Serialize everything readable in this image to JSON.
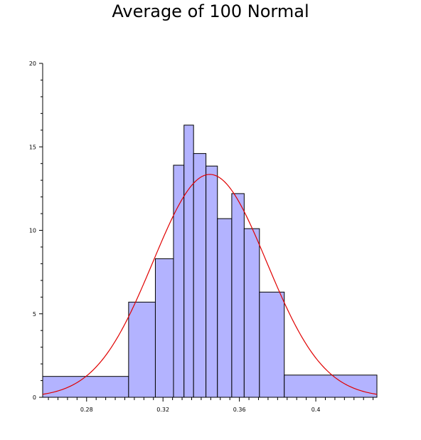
{
  "chart_data": {
    "type": "bar",
    "title": "Average of 100 Normal",
    "xlabel": "",
    "ylabel": "",
    "xlim": [
      0.257,
      0.432
    ],
    "ylim": [
      0,
      20
    ],
    "x_ticks": [
      0.28,
      0.32,
      0.36,
      0.4
    ],
    "x_tick_labels": [
      "0.28",
      "0.32",
      "0.36",
      "0.4"
    ],
    "y_ticks": [
      0,
      5,
      10,
      15,
      20
    ],
    "y_tick_labels": [
      "0",
      "5",
      "10",
      "15",
      "20"
    ],
    "grid": false,
    "colors": {
      "bar_fill": "#b3b3ff",
      "bar_stroke": "#000000",
      "curve": "#e00000"
    },
    "bins": [
      {
        "x0": 0.257,
        "x1": 0.302,
        "height": 1.25
      },
      {
        "x0": 0.302,
        "x1": 0.316,
        "height": 5.7
      },
      {
        "x0": 0.316,
        "x1": 0.3255,
        "height": 8.3
      },
      {
        "x0": 0.3255,
        "x1": 0.331,
        "height": 13.9
      },
      {
        "x0": 0.331,
        "x1": 0.336,
        "height": 16.3
      },
      {
        "x0": 0.336,
        "x1": 0.3425,
        "height": 14.6
      },
      {
        "x0": 0.3425,
        "x1": 0.3485,
        "height": 13.85
      },
      {
        "x0": 0.3485,
        "x1": 0.356,
        "height": 10.7
      },
      {
        "x0": 0.356,
        "x1": 0.3625,
        "height": 12.2
      },
      {
        "x0": 0.3625,
        "x1": 0.3705,
        "height": 10.1
      },
      {
        "x0": 0.3705,
        "x1": 0.3835,
        "height": 6.3
      },
      {
        "x0": 0.3835,
        "x1": 0.432,
        "height": 1.33
      }
    ],
    "density_curve": {
      "type": "normal",
      "mean": 0.3445,
      "sd": 0.0298
    }
  }
}
